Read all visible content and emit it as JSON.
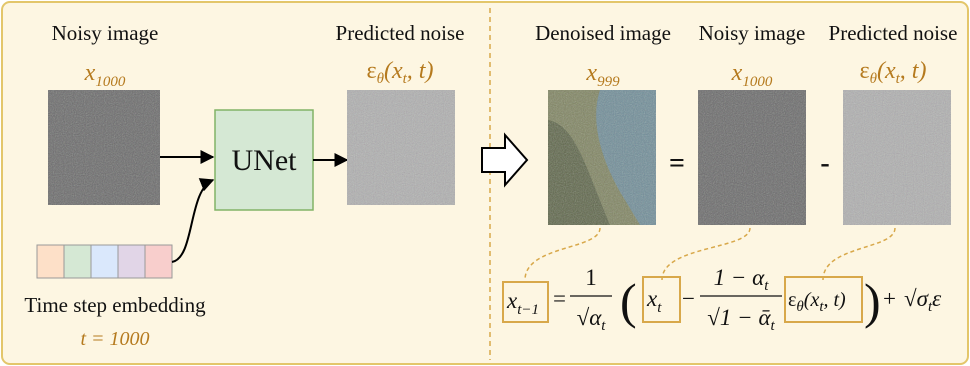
{
  "left": {
    "noisy_label": "Noisy image",
    "noisy_symbol": {
      "base": "x",
      "sub": "1000"
    },
    "noise_label": "Predicted noise",
    "noise_symbol": {
      "base": "ε",
      "sub": "θ",
      "args": "(x",
      "args_sub": "t",
      "args_end": ", t)"
    },
    "model": "UNet",
    "embedding_label": "Time step embedding",
    "embedding_value": "t = 1000"
  },
  "right": {
    "denoised_label": "Denoised image",
    "denoised_symbol": {
      "base": "x",
      "sub": "999"
    },
    "noisy_label": "Noisy image",
    "noisy_symbol": {
      "base": "x",
      "sub": "1000"
    },
    "noise_label": "Predicted noise",
    "noise_symbol": {
      "base": "ε",
      "sub": "θ",
      "args": "(x",
      "args_sub": "t",
      "args_end": ", t)"
    },
    "equals": "=",
    "minus": "-"
  },
  "formula": {
    "lhs": {
      "base": "x",
      "sub": "t−1"
    },
    "equals": "=",
    "coef_numerator": "1",
    "coef_denominator": {
      "root": "√",
      "base": "α",
      "sub": "t"
    },
    "open": "(",
    "xt": {
      "base": "x",
      "sub": "t"
    },
    "minus": "−",
    "frac_numerator": {
      "text": "1 − α",
      "sub": "t"
    },
    "frac_denominator": {
      "root": "√",
      "text": "1 − ᾱ",
      "sub": "t"
    },
    "eps": {
      "base": "ε",
      "sub": "θ",
      "args": "(x",
      "args_sub": "t",
      "args_end": ", t)"
    },
    "close": ")",
    "plus": "+",
    "noise_term": {
      "root": "√",
      "base": "σ",
      "sub": "t",
      "tail": "ε"
    }
  }
}
